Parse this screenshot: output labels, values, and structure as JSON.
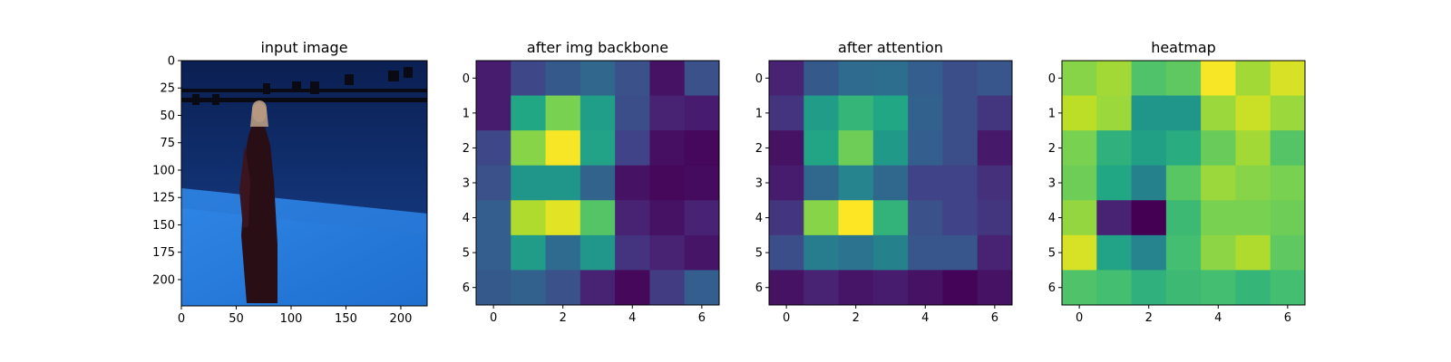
{
  "figure": {
    "background": "#ffffff"
  },
  "chart_data": [
    {
      "type": "image",
      "title": "input image",
      "xlim": [
        0,
        224
      ],
      "ylim": [
        224,
        0
      ],
      "xticks": [
        0,
        50,
        100,
        150,
        200
      ],
      "yticks": [
        0,
        25,
        50,
        75,
        100,
        125,
        150,
        175,
        200
      ],
      "content": "photo of a woman in a long dark dress standing in a blue studio room",
      "colors": {
        "wall": "#0e2a6b",
        "floor": "#2f86e6",
        "dress": "#2a0e16",
        "rig": "#0a0a14"
      }
    },
    {
      "type": "heatmap",
      "title": "after img backbone",
      "colormap": "viridis",
      "xticks": [
        0,
        2,
        4,
        6
      ],
      "yticks": [
        0,
        1,
        2,
        3,
        4,
        5,
        6
      ],
      "values": [
        [
          0.08,
          0.22,
          0.28,
          0.33,
          0.25,
          0.05,
          0.25
        ],
        [
          0.08,
          0.6,
          0.8,
          0.56,
          0.24,
          0.1,
          0.08
        ],
        [
          0.22,
          0.82,
          0.99,
          0.58,
          0.2,
          0.04,
          0.02
        ],
        [
          0.25,
          0.52,
          0.52,
          0.32,
          0.05,
          0.02,
          0.03
        ],
        [
          0.3,
          0.88,
          0.96,
          0.73,
          0.1,
          0.05,
          0.1
        ],
        [
          0.3,
          0.55,
          0.35,
          0.53,
          0.15,
          0.1,
          0.06
        ],
        [
          0.28,
          0.31,
          0.25,
          0.1,
          0.02,
          0.18,
          0.3
        ]
      ]
    },
    {
      "type": "heatmap",
      "title": "after attention",
      "colormap": "viridis",
      "xticks": [
        0,
        2,
        4,
        6
      ],
      "yticks": [
        0,
        1,
        2,
        3,
        4,
        5,
        6
      ],
      "values": [
        [
          0.1,
          0.28,
          0.35,
          0.36,
          0.3,
          0.24,
          0.27
        ],
        [
          0.15,
          0.55,
          0.66,
          0.6,
          0.31,
          0.24,
          0.16
        ],
        [
          0.05,
          0.59,
          0.78,
          0.54,
          0.3,
          0.24,
          0.07
        ],
        [
          0.08,
          0.34,
          0.45,
          0.34,
          0.2,
          0.2,
          0.14
        ],
        [
          0.16,
          0.82,
          1.0,
          0.65,
          0.25,
          0.2,
          0.16
        ],
        [
          0.24,
          0.42,
          0.38,
          0.44,
          0.27,
          0.27,
          0.1
        ],
        [
          0.05,
          0.1,
          0.06,
          0.08,
          0.05,
          0.01,
          0.05
        ]
      ]
    },
    {
      "type": "heatmap",
      "title": "heatmap",
      "colormap": "viridis",
      "xticks": [
        0,
        2,
        4,
        6
      ],
      "yticks": [
        0,
        1,
        2,
        3,
        4,
        5,
        6
      ],
      "values": [
        [
          0.82,
          0.86,
          0.72,
          0.75,
          0.99,
          0.86,
          0.94
        ],
        [
          0.9,
          0.85,
          0.52,
          0.52,
          0.85,
          0.92,
          0.85
        ],
        [
          0.8,
          0.64,
          0.57,
          0.62,
          0.77,
          0.86,
          0.73
        ],
        [
          0.78,
          0.6,
          0.44,
          0.74,
          0.85,
          0.82,
          0.8
        ],
        [
          0.84,
          0.1,
          0.0,
          0.68,
          0.8,
          0.8,
          0.78
        ],
        [
          0.94,
          0.58,
          0.45,
          0.7,
          0.83,
          0.88,
          0.75
        ],
        [
          0.72,
          0.7,
          0.64,
          0.68,
          0.7,
          0.66,
          0.7
        ]
      ]
    }
  ]
}
